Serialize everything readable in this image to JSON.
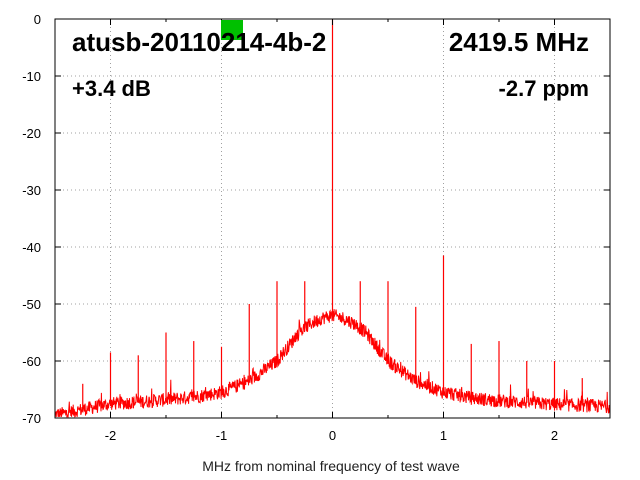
{
  "chart_data": {
    "type": "line",
    "xlabel": "MHz from nominal frequency of test wave",
    "ylabel": "",
    "xlim": [
      -2.5,
      2.5
    ],
    "ylim": [
      -70,
      0
    ],
    "x_ticks": [
      -2,
      -1,
      0,
      1,
      2
    ],
    "x_tick_labels": [
      "-2",
      "-1",
      "0",
      "1",
      "2"
    ],
    "y_ticks": [
      0,
      -10,
      -20,
      -30,
      -40,
      -50,
      -60,
      -70
    ],
    "y_tick_labels": [
      "0",
      "-10",
      "-20",
      "-30",
      "-40",
      "-50",
      "-60",
      "-70"
    ],
    "grid": true,
    "annotations": {
      "device": "atusb-20110214-4b-2",
      "frequency": "2419.5 MHz",
      "gain": "+3.4 dB",
      "deviation": "-2.7 ppm"
    },
    "indicator_color": "#00c000",
    "series": [
      {
        "color": "#ff0000",
        "noise_floor": {
          "x": [
            -2.5,
            -2.25,
            -2.0,
            -1.75,
            -1.5,
            -1.25,
            -1.0,
            -0.75,
            -0.5,
            -0.4,
            -0.3,
            -0.2,
            -0.1,
            0.0,
            0.1,
            0.2,
            0.3,
            0.4,
            0.5,
            0.75,
            1.0,
            1.25,
            1.5,
            1.75,
            2.0,
            2.25,
            2.5
          ],
          "y": [
            -69.5,
            -68.5,
            -67.5,
            -67.2,
            -66.8,
            -66.3,
            -65.5,
            -63.5,
            -60.0,
            -57.5,
            -55.0,
            -53.5,
            -52.5,
            -52.0,
            -52.5,
            -53.5,
            -55.0,
            -57.5,
            -60.0,
            -63.5,
            -65.5,
            -66.5,
            -67.0,
            -67.3,
            -67.6,
            -67.8,
            -68.0
          ]
        },
        "spurs": {
          "x": [
            -2.25,
            -2.0,
            -1.75,
            -1.5,
            -1.25,
            -1.0,
            -0.75,
            -0.5,
            -0.25,
            0.0,
            0.25,
            0.5,
            0.75,
            1.0,
            1.25,
            1.5,
            1.75,
            2.0,
            2.25
          ],
          "y": [
            -64.0,
            -58.5,
            -59.0,
            -55.0,
            -56.5,
            -57.5,
            -50.0,
            -46.0,
            -46.0,
            0.0,
            -46.0,
            -46.0,
            -50.5,
            -41.5,
            -57.0,
            -56.5,
            -60.0,
            -60.0,
            -63.0
          ]
        }
      }
    ]
  }
}
